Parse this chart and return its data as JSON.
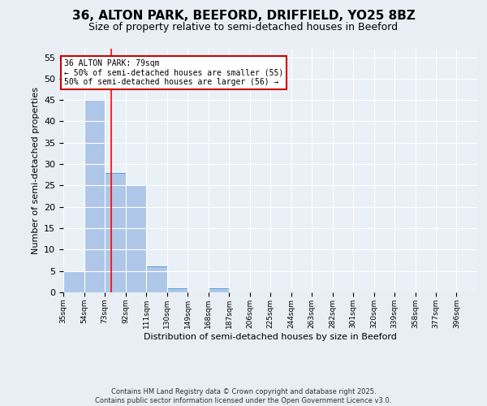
{
  "title": "36, ALTON PARK, BEEFORD, DRIFFIELD, YO25 8BZ",
  "subtitle": "Size of property relative to semi-detached houses in Beeford",
  "xlabel": "Distribution of semi-detached houses by size in Beeford",
  "ylabel": "Number of semi-detached properties",
  "bins": [
    35,
    54,
    73,
    92,
    111,
    130,
    149,
    168,
    187,
    206,
    225,
    244,
    263,
    282,
    301,
    320,
    339,
    358,
    377,
    396,
    415
  ],
  "counts": [
    5,
    45,
    28,
    25,
    6,
    1,
    0,
    1,
    0,
    0,
    0,
    0,
    0,
    0,
    0,
    0,
    0,
    0,
    0,
    0
  ],
  "bar_color": "#aec6e8",
  "bar_edge_color": "#5a9fd4",
  "red_line_x": 79,
  "ylim": [
    0,
    57
  ],
  "yticks": [
    0,
    5,
    10,
    15,
    20,
    25,
    30,
    35,
    40,
    45,
    50,
    55
  ],
  "annotation_title": "36 ALTON PARK: 79sqm",
  "annotation_line1": "← 50% of semi-detached houses are smaller (55)",
  "annotation_line2": "50% of semi-detached houses are larger (56) →",
  "annotation_box_color": "#ffffff",
  "annotation_box_edge": "#cc0000",
  "footer_line1": "Contains HM Land Registry data © Crown copyright and database right 2025.",
  "footer_line2": "Contains public sector information licensed under the Open Government Licence v3.0.",
  "background_color": "#e8eef4",
  "plot_bg_color": "#eaf0f7",
  "title_fontsize": 11,
  "subtitle_fontsize": 9,
  "ylabel_fontsize": 8,
  "xlabel_fontsize": 8,
  "ytick_fontsize": 8,
  "xtick_fontsize": 6.5,
  "footer_fontsize": 6,
  "annot_fontsize": 7
}
